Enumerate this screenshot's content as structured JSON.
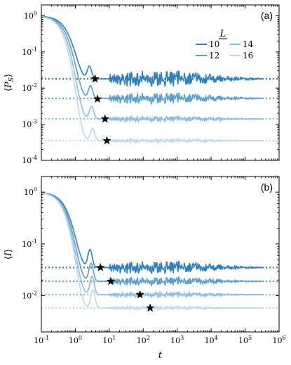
{
  "chart_data": [
    {
      "panel_tag": "(a)",
      "type": "line",
      "ylabel": "⟨P_S⟩",
      "ylabel_parts": [
        "⟨",
        "P",
        "S",
        "⟩"
      ],
      "xscale": "log",
      "yscale": "log",
      "xlim": [
        0.1,
        1000000
      ],
      "ylim": [
        0.0001,
        2
      ],
      "y_ticks": [
        {
          "value": 1,
          "label": "10^0"
        },
        {
          "value": 0.1,
          "label": "10^-1"
        },
        {
          "value": 0.01,
          "label": "10^-2"
        },
        {
          "value": 0.001,
          "label": "10^-3"
        },
        {
          "value": 0.0001,
          "label": "10^-4"
        }
      ],
      "legend": {
        "title": "L",
        "placement": "top-right",
        "entries": [
          "10",
          "14",
          "12",
          "16"
        ]
      },
      "series": [
        {
          "name": "10",
          "color": "#2f7fbd",
          "plateau": 0.018,
          "dip_t": 2.6,
          "dip_v": 0.028,
          "mark_t": 3.8,
          "noise": 0.22
        },
        {
          "name": "12",
          "color": "#5b9fd0",
          "plateau": 0.0052,
          "dip_t": 2.8,
          "dip_v": 0.012,
          "mark_t": 4.5,
          "noise": 0.15
        },
        {
          "name": "14",
          "color": "#8cbde2",
          "plateau": 0.0014,
          "dip_t": 3.0,
          "dip_v": 0.0045,
          "mark_t": 6.5,
          "noise": 0.08
        },
        {
          "name": "16",
          "color": "#bcd8ee",
          "plateau": 0.00035,
          "dip_t": 3.2,
          "dip_v": 0.0018,
          "mark_t": 8.0,
          "noise": 0.05
        }
      ],
      "stars": [
        {
          "t": 3.8,
          "v": 0.018
        },
        {
          "t": 4.5,
          "v": 0.005
        },
        {
          "t": 7.5,
          "v": 0.0014
        },
        {
          "t": 8.5,
          "v": 0.00035
        }
      ]
    },
    {
      "panel_tag": "(b)",
      "type": "line",
      "ylabel": "⟨I⟩",
      "ylabel_parts": [
        "⟨",
        "I",
        "",
        "⟩"
      ],
      "xlabel": "t",
      "xscale": "log",
      "yscale": "log",
      "xlim": [
        0.1,
        1000000
      ],
      "ylim": [
        0.002,
        2
      ],
      "y_ticks": [
        {
          "value": 1,
          "label": "10^0"
        },
        {
          "value": 0.1,
          "label": "10^-1"
        },
        {
          "value": 0.01,
          "label": "10^-2"
        }
      ],
      "x_ticks": [
        {
          "value": 0.1,
          "label": "10^-1"
        },
        {
          "value": 1,
          "label": "10^0"
        },
        {
          "value": 10,
          "label": "10^1"
        },
        {
          "value": 100,
          "label": "10^2"
        },
        {
          "value": 1000,
          "label": "10^3"
        },
        {
          "value": 10000,
          "label": "10^4"
        },
        {
          "value": 100000,
          "label": "10^5"
        },
        {
          "value": 1000000,
          "label": "10^6"
        }
      ],
      "series": [
        {
          "name": "10",
          "color": "#2f7fbd",
          "plateau": 0.035,
          "dip_t": 2.7,
          "dip_v": 0.06,
          "mark_t": 6,
          "noise": 0.12
        },
        {
          "name": "12",
          "color": "#5b9fd0",
          "plateau": 0.019,
          "dip_t": 2.9,
          "dip_v": 0.05,
          "mark_t": 12,
          "noise": 0.08
        },
        {
          "name": "14",
          "color": "#8cbde2",
          "plateau": 0.0105,
          "dip_t": 3.1,
          "dip_v": 0.045,
          "mark_t": 80,
          "noise": 0.05
        },
        {
          "name": "16",
          "color": "#bcd8ee",
          "plateau": 0.0058,
          "dip_t": 3.3,
          "dip_v": 0.04,
          "mark_t": 160,
          "noise": 0.03
        }
      ],
      "stars": [
        {
          "t": 5.5,
          "v": 0.035
        },
        {
          "t": 11,
          "v": 0.019
        },
        {
          "t": 80,
          "v": 0.0105
        },
        {
          "t": 160,
          "v": 0.0058
        }
      ]
    }
  ]
}
